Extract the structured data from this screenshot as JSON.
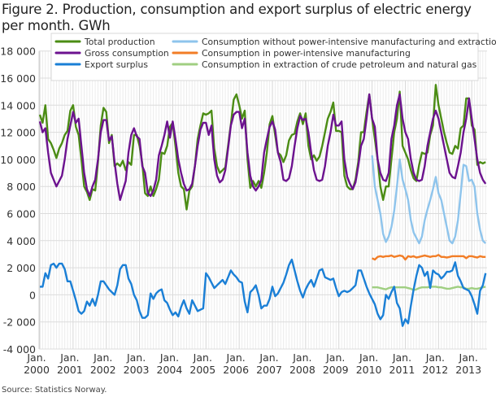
{
  "title": "Figure 2. Production, consumption and export surplus of electric energy per month. GWh",
  "source": "Source: Statistics Norway.",
  "chart_data": {
    "type": "line",
    "title": "Figure 2. Production, consumption and export surplus of electric energy per month. GWh",
    "xlabel": "",
    "ylabel": "",
    "x_start": "Jan. 2000",
    "x_end": "Jun. 2013",
    "frequency": "monthly",
    "ylim": [
      -4000,
      18000
    ],
    "yticks": [
      18000,
      16000,
      14000,
      12000,
      10000,
      8000,
      6000,
      4000,
      2000,
      0,
      -2000,
      -4000
    ],
    "ytick_labels": [
      "18 000",
      "16 000",
      "14 000",
      "12 000",
      "10 000",
      "8 000",
      "6 000",
      "4 000",
      "2 000",
      "0",
      "-2 000",
      "-4 000"
    ],
    "xtick_labels": [
      [
        "Jan.",
        "2000"
      ],
      [
        "Jan.",
        "2001"
      ],
      [
        "Jan.",
        "2002"
      ],
      [
        "Jan.",
        "2003"
      ],
      [
        "Jan.",
        "2004"
      ],
      [
        "Jan.",
        "2005"
      ],
      [
        "Jan.",
        "2006"
      ],
      [
        "Jan.",
        "2007"
      ],
      [
        "Jan.",
        "2008"
      ],
      [
        "Jan.",
        "2009"
      ],
      [
        "Jan.",
        "2010"
      ],
      [
        "Jan.",
        "2011"
      ],
      [
        "Jan.",
        "2012"
      ],
      [
        "Jan.",
        "2013"
      ]
    ],
    "grid": true,
    "legend_position": "top",
    "series": [
      {
        "name": "Total production",
        "color": "#4b8c14",
        "start": "Jan. 2000",
        "values": [
          13300,
          12700,
          14000,
          11500,
          11200,
          10700,
          10100,
          10800,
          11200,
          11800,
          12100,
          13600,
          14000,
          12400,
          11800,
          10000,
          8000,
          7600,
          7000,
          7800,
          7700,
          9800,
          12500,
          13800,
          13500,
          11200,
          11800,
          9500,
          9700,
          9500,
          9900,
          9200,
          9800,
          9600,
          11800,
          11800,
          11000,
          9700,
          7500,
          7300,
          8000,
          7300,
          7800,
          8500,
          10500,
          10400,
          11000,
          12400,
          12700,
          11000,
          9000,
          8000,
          7800,
          6300,
          7700,
          8000,
          9500,
          11500,
          12500,
          13400,
          13300,
          13400,
          13600,
          10800,
          9500,
          9000,
          9200,
          9400,
          11000,
          12600,
          14400,
          14800,
          14000,
          13000,
          13600,
          10000,
          7900,
          8400,
          8000,
          8400,
          7900,
          9000,
          10500,
          12600,
          13200,
          11800,
          10500,
          10300,
          9800,
          10300,
          11400,
          11800,
          11900,
          12800,
          13400,
          12600,
          13400,
          11000,
          10000,
          10300,
          9900,
          10200,
          11000,
          12000,
          13000,
          13500,
          14200,
          12100,
          12100,
          12000,
          8800,
          8000,
          7800,
          7800,
          8500,
          9800,
          12000,
          12000,
          13500,
          14800,
          13000,
          11500,
          10000,
          8000,
          7000,
          8000,
          8000,
          10000,
          12000,
          13000,
          15000,
          11000,
          10500,
          10000,
          9200,
          8600,
          8400,
          9600,
          10500,
          10400,
          10500,
          11800,
          12500,
          15500,
          14000,
          13000,
          12000,
          11200,
          10500,
          10400,
          11000,
          10800,
          12300,
          12500,
          14500,
          14500,
          12500,
          12200,
          9600,
          9800,
          9700,
          9800
        ]
      },
      {
        "name": "Gross consumption",
        "color": "#6c128f",
        "start": "Jan. 2000",
        "values": [
          12800,
          12000,
          12300,
          10500,
          9000,
          8500,
          8000,
          8400,
          8800,
          10000,
          11500,
          12500,
          13500,
          12700,
          13000,
          11000,
          9000,
          7800,
          7300,
          8000,
          8500,
          10000,
          12000,
          12900,
          12900,
          11400,
          11700,
          9800,
          8200,
          7000,
          7700,
          8400,
          10500,
          11800,
          12300,
          11700,
          11500,
          9500,
          9000,
          7500,
          7300,
          7700,
          8500,
          10300,
          11000,
          11800,
          12800,
          11600,
          12800,
          11500,
          10000,
          9000,
          8200,
          7700,
          7800,
          8200,
          9500,
          11000,
          12200,
          12700,
          12700,
          11800,
          12500,
          10000,
          8800,
          8300,
          8500,
          9200,
          10800,
          12500,
          13300,
          13500,
          13500,
          12300,
          13000,
          10500,
          8800,
          8000,
          7700,
          8000,
          8500,
          10500,
          11500,
          12400,
          12800,
          12200,
          10500,
          9800,
          8500,
          8400,
          8600,
          9500,
          11000,
          12300,
          13200,
          12900,
          13000,
          12000,
          10500,
          9200,
          8500,
          8400,
          8500,
          9500,
          11000,
          12000,
          13300,
          12500,
          12500,
          12800,
          10000,
          8700,
          8200,
          7800,
          8300,
          9500,
          11000,
          11500,
          13000,
          14800,
          13000,
          12400,
          10000,
          9000,
          8500,
          8400,
          9000,
          11500,
          12500,
          14000,
          14800,
          13000,
          12000,
          11500,
          10000,
          9000,
          8500,
          8400,
          8500,
          9500,
          11000,
          12000,
          13000,
          13600,
          13000,
          12000,
          11000,
          10000,
          9000,
          8700,
          8600,
          9500,
          10500,
          12000,
          13000,
          14500,
          13000,
          11500,
          10000,
          9000,
          8500,
          8200
        ]
      },
      {
        "name": "Export surplus",
        "color": "#1a7fd6",
        "start": "Jan. 2000",
        "values": [
          600,
          600,
          1600,
          1200,
          2200,
          2300,
          2000,
          2300,
          2300,
          1900,
          1000,
          1000,
          300,
          -400,
          -1200,
          -1400,
          -1200,
          -500,
          -800,
          -300,
          -800,
          0,
          1000,
          1000,
          700,
          400,
          200,
          0,
          700,
          1900,
          2200,
          2200,
          1200,
          800,
          0,
          -400,
          -1200,
          -1700,
          -1700,
          -1500,
          100,
          -300,
          100,
          300,
          400,
          -400,
          -600,
          -1100,
          -1500,
          -1300,
          -1600,
          -900,
          -400,
          -1000,
          -1400,
          -400,
          -800,
          -1200,
          -1100,
          -1000,
          1600,
          1300,
          900,
          500,
          700,
          900,
          1100,
          800,
          1300,
          1800,
          1500,
          1300,
          1000,
          900,
          -500,
          -1300,
          200,
          400,
          700,
          0,
          -1000,
          -800,
          -800,
          -300,
          600,
          -100,
          100,
          500,
          900,
          1500,
          2200,
          2600,
          1800,
          1000,
          300,
          -200,
          400,
          800,
          1100,
          600,
          1200,
          1800,
          1900,
          1300,
          1200,
          1100,
          1200,
          500,
          -100,
          200,
          300,
          200,
          300,
          500,
          700,
          1800,
          1800,
          1200,
          600,
          100,
          -300,
          -700,
          -1400,
          -1800,
          -1500,
          0,
          -300,
          200,
          600,
          -600,
          -1000,
          -2300,
          -1800,
          -2100,
          -800,
          400,
          1400,
          2200,
          2000,
          1400,
          1700,
          500,
          1800,
          1600,
          1500,
          1200,
          1400,
          1700,
          1700,
          1800,
          2400,
          1400,
          1000,
          500,
          400,
          300,
          -100,
          -700,
          -1400,
          300,
          700,
          1600
        ]
      },
      {
        "name": "Consumption without power-intensive manufacturing and extraction",
        "color": "#8ec4ec",
        "start": "Jan. 2010",
        "values": [
          10300,
          8000,
          7000,
          6000,
          4500,
          3900,
          4300,
          5000,
          6200,
          8000,
          10000,
          8500,
          7800,
          7000,
          5500,
          4600,
          4200,
          3800,
          4300,
          5500,
          6300,
          7000,
          7800,
          8700,
          7500,
          7000,
          6000,
          5000,
          4000,
          3800,
          4300,
          5500,
          7500,
          9600,
          9500,
          8400,
          8500,
          8000,
          6000,
          4800,
          4000,
          3800
        ]
      },
      {
        "name": "Consumption in power-intensive manufacturing",
        "color": "#f27d26",
        "start": "Jan. 2010",
        "values": [
          2700,
          2600,
          2800,
          2850,
          2800,
          2850,
          2850,
          2900,
          2800,
          2850,
          2900,
          2850,
          2600,
          2850,
          2800,
          2850,
          2750,
          2800,
          2850,
          2900,
          2850,
          2800,
          2850,
          2850,
          2950,
          2800,
          2800,
          2750,
          2800,
          2850,
          2850,
          2850,
          2850,
          2850,
          2700,
          2850,
          2850,
          2800,
          2750,
          2850,
          2800,
          2800
        ]
      },
      {
        "name": "Consumption in extraction of crude petroleum and natural gas",
        "color": "#a0cf82",
        "start": "Jan. 2010",
        "values": [
          550,
          550,
          550,
          500,
          450,
          400,
          500,
          550,
          550,
          550,
          550,
          550,
          550,
          500,
          450,
          350,
          400,
          500,
          550,
          550,
          550,
          600,
          600,
          600,
          550,
          550,
          500,
          450,
          450,
          500,
          550,
          600,
          550,
          550,
          450,
          450,
          500,
          450,
          450,
          500,
          550,
          600
        ]
      }
    ]
  }
}
